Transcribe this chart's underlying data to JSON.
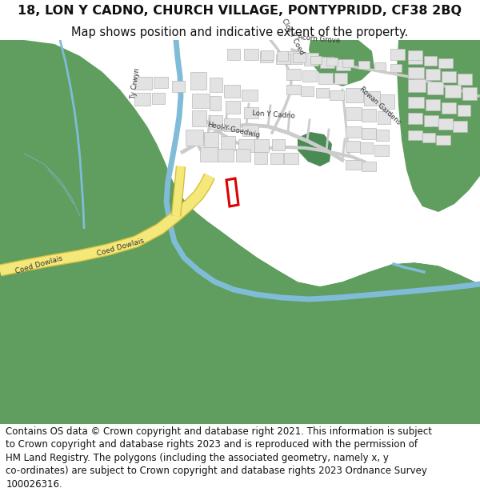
{
  "title_line1": "18, LON Y CADNO, CHURCH VILLAGE, PONTYPRIDD, CF38 2BQ",
  "title_line2": "Map shows position and indicative extent of the property.",
  "copyright_text": "Contains OS data © Crown copyright and database right 2021. This information is subject to Crown copyright and database rights 2023 and is reproduced with the permission of HM Land Registry. The polygons (including the associated geometry, namely x, y co-ordinates) are subject to Crown copyright and database rights 2023 Ordnance Survey 100026316.",
  "title_fontsize": 11.5,
  "subtitle_fontsize": 10.5,
  "copyright_fontsize": 8.5,
  "green": "#5f9e5f",
  "dark_green_strip": "#4a8a55",
  "white": "#ffffff",
  "road_yellow": "#f5e87a",
  "road_border": "#d4c040",
  "blue": "#80bcd8",
  "building_fill": "#e2e2e2",
  "building_edge": "#b8b8b8",
  "road_gray": "#cccccc",
  "red": "#dd0000",
  "text_dark": "#111111",
  "label_color": "#333333"
}
